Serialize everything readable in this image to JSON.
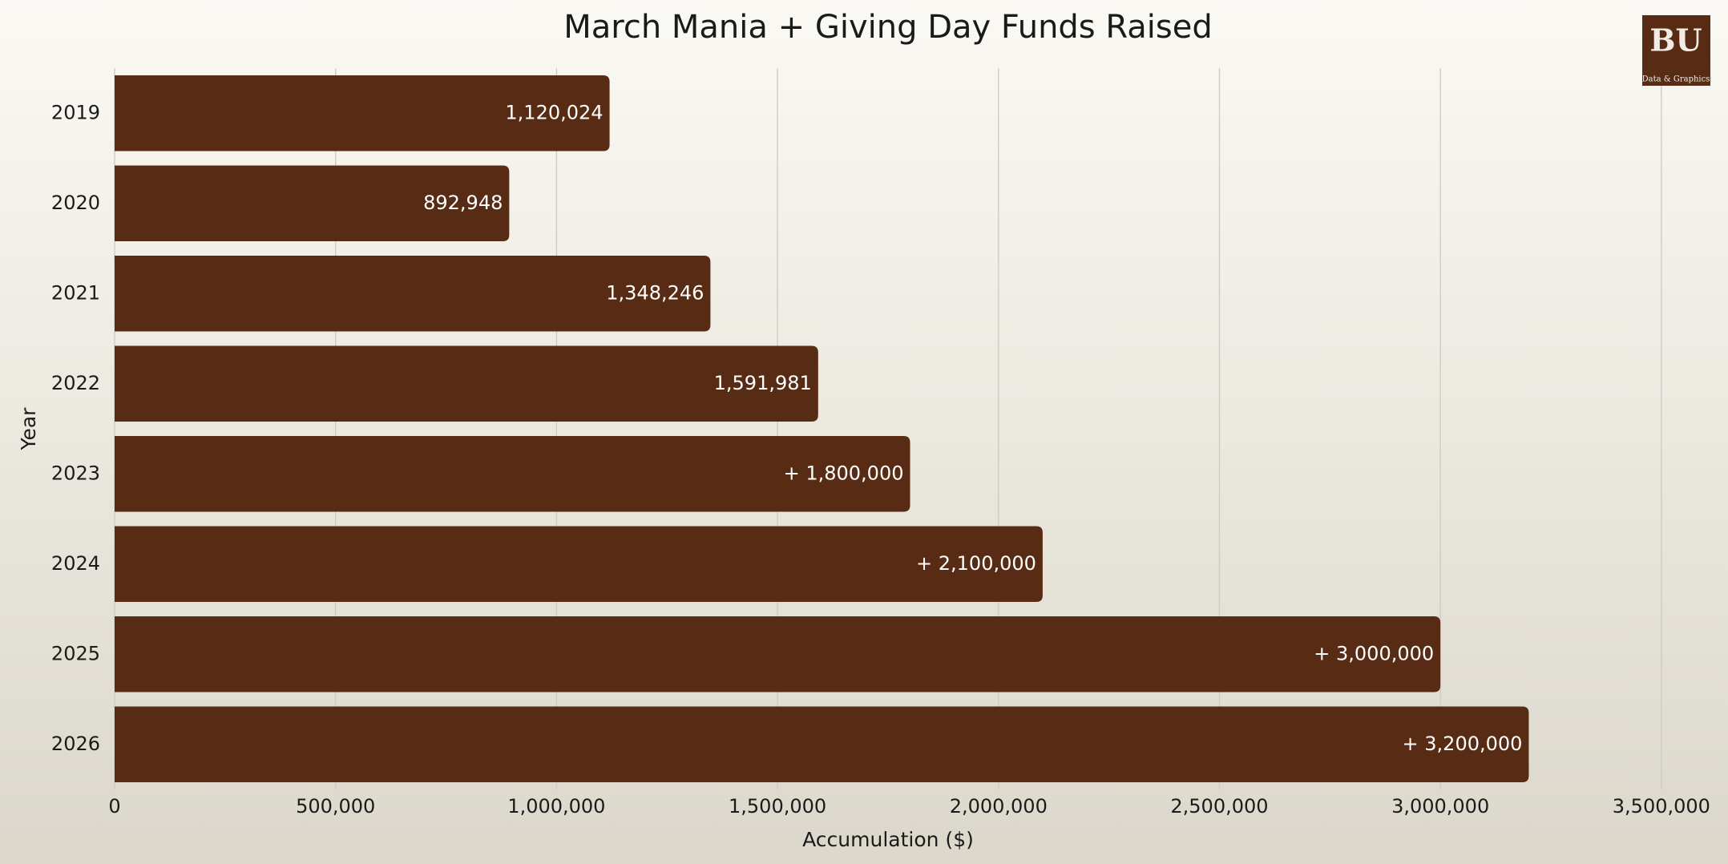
{
  "chart_data": {
    "type": "bar",
    "orientation": "horizontal",
    "title": "March Mania + Giving Day Funds Raised",
    "x_label": "Accumulation ($)",
    "y_label": "Year",
    "categories": [
      "2019",
      "2020",
      "2021",
      "2022",
      "2023",
      "2024",
      "2025",
      "2026"
    ],
    "values": [
      1120024,
      892948,
      1348246,
      1591981,
      1800000,
      2100000,
      3000000,
      3200000
    ],
    "value_labels": [
      "1,120,024",
      "892,948",
      "1,348,246",
      "1,591,981",
      "+ 1,800,000",
      "+ 2,100,000",
      "+ 3,000,000",
      "+ 3,200,000"
    ],
    "color": "#582c14",
    "xlim": [
      0,
      3600000
    ],
    "xticks": [
      0,
      {
        "value": 500000,
        "label": "500,000"
      },
      {
        "value": 1000000,
        "label": "1,000,000"
      },
      {
        "value": 1500000,
        "label": "1,500,000"
      },
      {
        "value": 2000000,
        "label": "2,000,000"
      },
      {
        "value": 2500000,
        "label": "2,500,000"
      },
      {
        "value": 3000000,
        "label": "3,000,000"
      },
      {
        "value": 3500000,
        "label": "3,500,000"
      }
    ],
    "grid": true
  },
  "logo": {
    "letters": "BU",
    "caption": "Data & Graphics"
  }
}
